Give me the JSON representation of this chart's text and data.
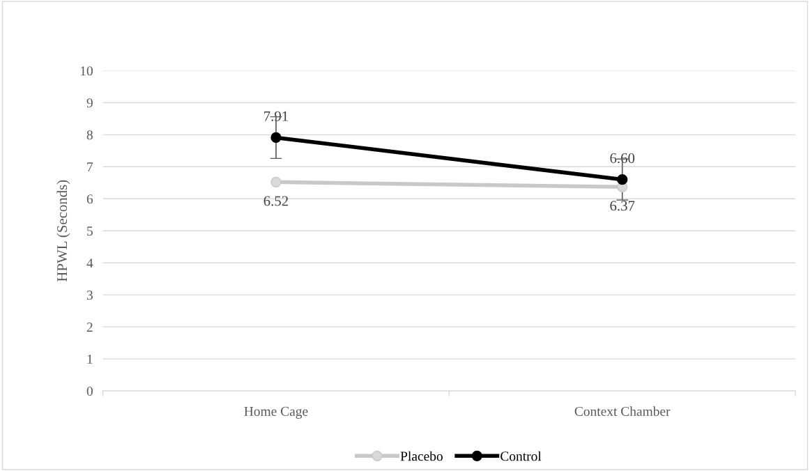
{
  "chart_data": {
    "type": "line",
    "ylabel": "HPWL (Seconds)",
    "categories": [
      "Home Cage",
      "Context Chamber"
    ],
    "series": [
      {
        "name": "Placebo",
        "color": "#c8c8c8",
        "values": [
          6.52,
          6.37
        ],
        "value_labels": [
          "6.52",
          "6.37"
        ]
      },
      {
        "name": "Control",
        "color": "#000000",
        "values": [
          7.91,
          6.6
        ],
        "errors": [
          0.65,
          0.64
        ],
        "value_labels": [
          "7.91",
          "6.60"
        ]
      }
    ],
    "ylim": [
      0,
      10
    ],
    "yticks": [
      0,
      1,
      2,
      3,
      4,
      5,
      6,
      7,
      8,
      9,
      10
    ],
    "grid": "y",
    "legend": "bottom",
    "marker": "circle",
    "line_style": "solid"
  }
}
